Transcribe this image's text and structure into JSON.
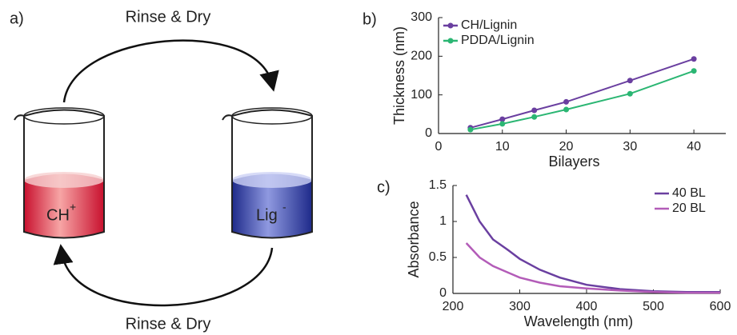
{
  "diagram": {
    "panel_label": "a)",
    "top_arrow_label": "Rinse & Dry",
    "bottom_arrow_label": "Rinse & Dry",
    "left_beaker": {
      "text": "CH",
      "superscript": "+"
    },
    "right_beaker": {
      "text": "Lig",
      "superscript": "-"
    }
  },
  "chart_data": [
    {
      "type": "line",
      "panel_label": "b)",
      "x_label": "Bilayers",
      "y_label": "Thickness (nm)",
      "x": [
        5,
        10,
        15,
        20,
        30,
        40
      ],
      "series": [
        {
          "name": "CH/Lignin",
          "color": "#6a3fa0",
          "values": [
            15,
            37,
            60,
            82,
            137,
            193
          ]
        },
        {
          "name": "PDDA/Lignin",
          "color": "#2bb673",
          "values": [
            10,
            25,
            43,
            62,
            103,
            162
          ]
        }
      ],
      "markers": true,
      "xlim": [
        0,
        45
      ],
      "xticks": [
        0,
        10,
        20,
        30,
        40
      ],
      "ylim": [
        0,
        300
      ],
      "yticks": [
        0,
        100,
        200,
        300
      ],
      "legend": "upper left"
    },
    {
      "type": "line",
      "panel_label": "c)",
      "x_label": "Wavelength (nm)",
      "y_label": "Absorbance",
      "x": [
        220,
        240,
        260,
        280,
        300,
        330,
        360,
        400,
        450,
        500,
        550,
        600
      ],
      "series": [
        {
          "name": "40 BL",
          "color": "#6a3fa0",
          "values": [
            1.37,
            1.0,
            0.75,
            0.62,
            0.48,
            0.33,
            0.22,
            0.12,
            0.06,
            0.03,
            0.02,
            0.02
          ]
        },
        {
          "name": "20 BL",
          "color": "#b35cb8",
          "values": [
            0.7,
            0.5,
            0.38,
            0.3,
            0.22,
            0.15,
            0.1,
            0.07,
            0.04,
            0.02,
            0.01,
            0.01
          ]
        }
      ],
      "markers": false,
      "xlim": [
        200,
        600
      ],
      "xticks": [
        200,
        300,
        400,
        500,
        600
      ],
      "ylim": [
        0,
        1.5
      ],
      "yticks": [
        0,
        0.5,
        1,
        1.5
      ],
      "legend": "upper right"
    }
  ]
}
